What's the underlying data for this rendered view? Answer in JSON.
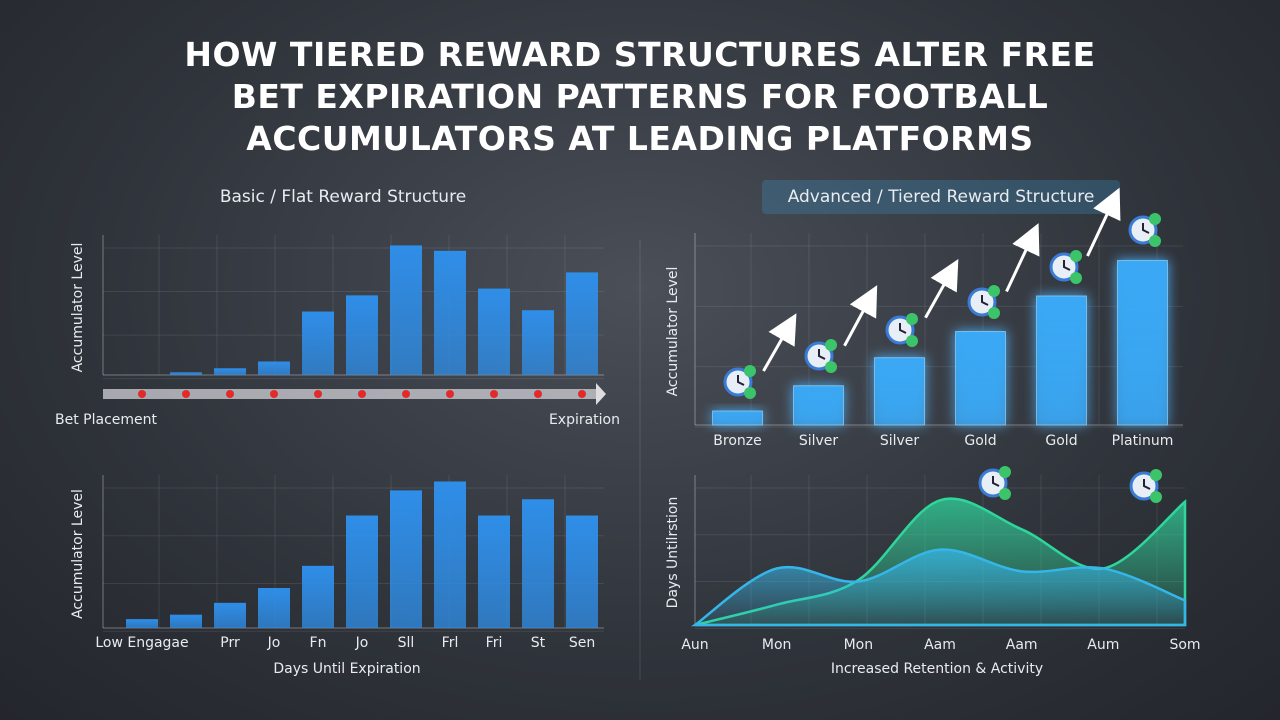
{
  "title": "HOW TIERED REWARD STRUCTURES ALTER FREE BET EXPIRATION PATTERNS FOR FOOTBALL ACCUMULATORS AT LEADING PLATFORMS",
  "chart_data": [
    {
      "type": "bar",
      "title": "Basic / Flat Reward Structure",
      "y_label": "Accumulator Level",
      "values": [
        0,
        2,
        5,
        10,
        47,
        59,
        96,
        92,
        64,
        48,
        76
      ],
      "color": "#2f8ee8",
      "ylim": [
        0,
        100
      ],
      "timeline_start": "Bet Placement",
      "timeline_end": "Expiration"
    },
    {
      "type": "bar",
      "y_label": "Accumulator Level",
      "x_label": "Days Until Expiration",
      "categories": [
        "Low Engagae",
        null,
        "Prr",
        "Jo",
        "Fn",
        "Jo",
        "Sll",
        "Frl",
        "Fri",
        "St",
        "Sen"
      ],
      "values": [
        6,
        9,
        17,
        27,
        42,
        76,
        93,
        99,
        76,
        87,
        76
      ],
      "color": "#2f8ee8",
      "ylim": [
        0,
        100
      ]
    },
    {
      "type": "bar",
      "title": "Advanced / Tiered Reward Structure",
      "y_label": "Accumulator Level",
      "categories": [
        "Bronze",
        "Silver",
        "Silver",
        "Gold",
        "Gold",
        "Platinum"
      ],
      "values": [
        7.5,
        21,
        36,
        50,
        69,
        88
      ],
      "color": "#3aa8f5",
      "ylim": [
        0,
        100
      ]
    },
    {
      "type": "area",
      "y_label": "Days Untilrstion",
      "x_label": "Increased Retention & Activity",
      "categories": [
        "Aun",
        "Mon",
        "Mon",
        "Aam",
        "Aam",
        "Aum",
        "Som"
      ],
      "series": [
        {
          "color": "#2fd69c",
          "values": [
            0,
            14,
            31,
            86,
            66,
            39,
            85
          ]
        },
        {
          "color": "#36b6e8",
          "values": [
            0,
            39,
            30,
            52,
            37,
            39,
            17
          ]
        }
      ],
      "ylim": [
        0,
        100
      ]
    }
  ]
}
